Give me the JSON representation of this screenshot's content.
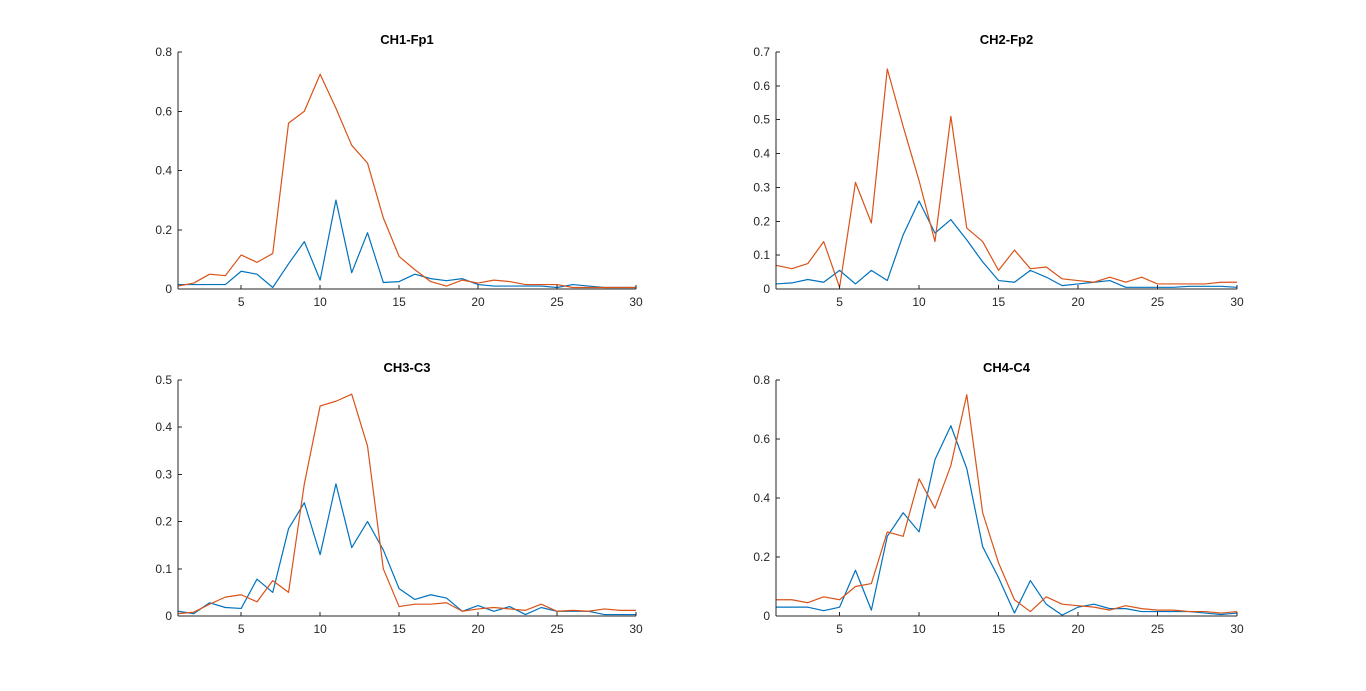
{
  "colors": {
    "series_1": "#0072BD",
    "series_2": "#D95319",
    "axis": "#262626",
    "background": "#FFFFFF"
  },
  "chart_data": [
    {
      "type": "line",
      "title": "CH1-Fp1",
      "xlabel": "",
      "ylabel": "",
      "xlim": [
        1,
        30
      ],
      "ylim": [
        0,
        0.8
      ],
      "xticks": [
        5,
        10,
        15,
        20,
        25,
        30
      ],
      "yticks": [
        0,
        0.2,
        0.4,
        0.6,
        0.8
      ],
      "grid": false,
      "legend": "none",
      "x": [
        1,
        2,
        3,
        4,
        5,
        6,
        7,
        8,
        9,
        10,
        11,
        12,
        13,
        14,
        15,
        16,
        17,
        18,
        19,
        20,
        21,
        22,
        23,
        24,
        25,
        26,
        27,
        28,
        29,
        30
      ],
      "series": [
        {
          "color": "#0072BD",
          "values": [
            0.015,
            0.015,
            0.015,
            0.015,
            0.06,
            0.05,
            0.005,
            0.085,
            0.16,
            0.03,
            0.3,
            0.055,
            0.19,
            0.022,
            0.025,
            0.05,
            0.035,
            0.028,
            0.035,
            0.015,
            0.01,
            0.01,
            0.01,
            0.01,
            0.005,
            0.015,
            0.01,
            0.005,
            0.005,
            0.005
          ]
        },
        {
          "color": "#D95319",
          "values": [
            0.01,
            0.02,
            0.05,
            0.045,
            0.115,
            0.09,
            0.12,
            0.56,
            0.6,
            0.725,
            0.61,
            0.485,
            0.425,
            0.24,
            0.11,
            0.065,
            0.025,
            0.01,
            0.03,
            0.02,
            0.03,
            0.025,
            0.015,
            0.015,
            0.015,
            0.005,
            0.005,
            0.005,
            0.005,
            0.005
          ]
        }
      ]
    },
    {
      "type": "line",
      "title": "CH2-Fp2",
      "xlabel": "",
      "ylabel": "",
      "xlim": [
        1,
        30
      ],
      "ylim": [
        0,
        0.7
      ],
      "xticks": [
        5,
        10,
        15,
        20,
        25,
        30
      ],
      "yticks": [
        0,
        0.1,
        0.2,
        0.3,
        0.4,
        0.5,
        0.6,
        0.7
      ],
      "grid": false,
      "legend": "none",
      "x": [
        1,
        2,
        3,
        4,
        5,
        6,
        7,
        8,
        9,
        10,
        11,
        12,
        13,
        14,
        15,
        16,
        17,
        18,
        19,
        20,
        21,
        22,
        23,
        24,
        25,
        26,
        27,
        28,
        29,
        30
      ],
      "series": [
        {
          "color": "#0072BD",
          "values": [
            0.015,
            0.018,
            0.028,
            0.02,
            0.055,
            0.015,
            0.055,
            0.025,
            0.16,
            0.26,
            0.165,
            0.205,
            0.145,
            0.08,
            0.025,
            0.02,
            0.055,
            0.035,
            0.01,
            0.015,
            0.02,
            0.025,
            0.005,
            0.005,
            0.005,
            0.005,
            0.008,
            0.008,
            0.008,
            0.005
          ]
        },
        {
          "color": "#D95319",
          "values": [
            0.07,
            0.06,
            0.075,
            0.14,
            0.005,
            0.315,
            0.195,
            0.65,
            0.48,
            0.32,
            0.14,
            0.51,
            0.18,
            0.14,
            0.055,
            0.115,
            0.06,
            0.065,
            0.03,
            0.025,
            0.02,
            0.035,
            0.02,
            0.035,
            0.015,
            0.015,
            0.015,
            0.015,
            0.02,
            0.02
          ]
        }
      ]
    },
    {
      "type": "line",
      "title": "CH3-C3",
      "xlabel": "",
      "ylabel": "",
      "xlim": [
        1,
        30
      ],
      "ylim": [
        0,
        0.5
      ],
      "xticks": [
        5,
        10,
        15,
        20,
        25,
        30
      ],
      "yticks": [
        0,
        0.1,
        0.2,
        0.3,
        0.4,
        0.5
      ],
      "grid": false,
      "legend": "none",
      "x": [
        1,
        2,
        3,
        4,
        5,
        6,
        7,
        8,
        9,
        10,
        11,
        12,
        13,
        14,
        15,
        16,
        17,
        18,
        19,
        20,
        21,
        22,
        23,
        24,
        25,
        26,
        27,
        28,
        29,
        30
      ],
      "series": [
        {
          "color": "#0072BD",
          "values": [
            0.01,
            0.005,
            0.028,
            0.018,
            0.016,
            0.078,
            0.05,
            0.185,
            0.24,
            0.13,
            0.28,
            0.145,
            0.2,
            0.14,
            0.058,
            0.035,
            0.045,
            0.038,
            0.01,
            0.022,
            0.01,
            0.02,
            0.003,
            0.018,
            0.01,
            0.01,
            0.01,
            0.003,
            0.003,
            0.003
          ]
        },
        {
          "color": "#D95319",
          "values": [
            0.005,
            0.008,
            0.025,
            0.04,
            0.045,
            0.03,
            0.075,
            0.05,
            0.28,
            0.445,
            0.455,
            0.47,
            0.36,
            0.1,
            0.02,
            0.025,
            0.025,
            0.028,
            0.01,
            0.015,
            0.018,
            0.015,
            0.012,
            0.025,
            0.01,
            0.012,
            0.01,
            0.015,
            0.012,
            0.012
          ]
        }
      ]
    },
    {
      "type": "line",
      "title": "CH4-C4",
      "xlabel": "",
      "ylabel": "",
      "xlim": [
        1,
        30
      ],
      "ylim": [
        0,
        0.8
      ],
      "xticks": [
        5,
        10,
        15,
        20,
        25,
        30
      ],
      "yticks": [
        0,
        0.2,
        0.4,
        0.6,
        0.8
      ],
      "grid": false,
      "legend": "none",
      "x": [
        1,
        2,
        3,
        4,
        5,
        6,
        7,
        8,
        9,
        10,
        11,
        12,
        13,
        14,
        15,
        16,
        17,
        18,
        19,
        20,
        21,
        22,
        23,
        24,
        25,
        26,
        27,
        28,
        29,
        30
      ],
      "series": [
        {
          "color": "#0072BD",
          "values": [
            0.03,
            0.03,
            0.03,
            0.018,
            0.03,
            0.155,
            0.02,
            0.27,
            0.35,
            0.285,
            0.53,
            0.645,
            0.5,
            0.235,
            0.13,
            0.01,
            0.12,
            0.04,
            0.003,
            0.03,
            0.04,
            0.025,
            0.025,
            0.015,
            0.015,
            0.015,
            0.015,
            0.01,
            0.005,
            0.01
          ]
        },
        {
          "color": "#D95319",
          "values": [
            0.055,
            0.055,
            0.045,
            0.065,
            0.055,
            0.1,
            0.11,
            0.285,
            0.27,
            0.465,
            0.365,
            0.51,
            0.75,
            0.35,
            0.18,
            0.055,
            0.015,
            0.065,
            0.04,
            0.035,
            0.03,
            0.02,
            0.035,
            0.025,
            0.02,
            0.02,
            0.015,
            0.015,
            0.01,
            0.015
          ]
        }
      ]
    }
  ]
}
